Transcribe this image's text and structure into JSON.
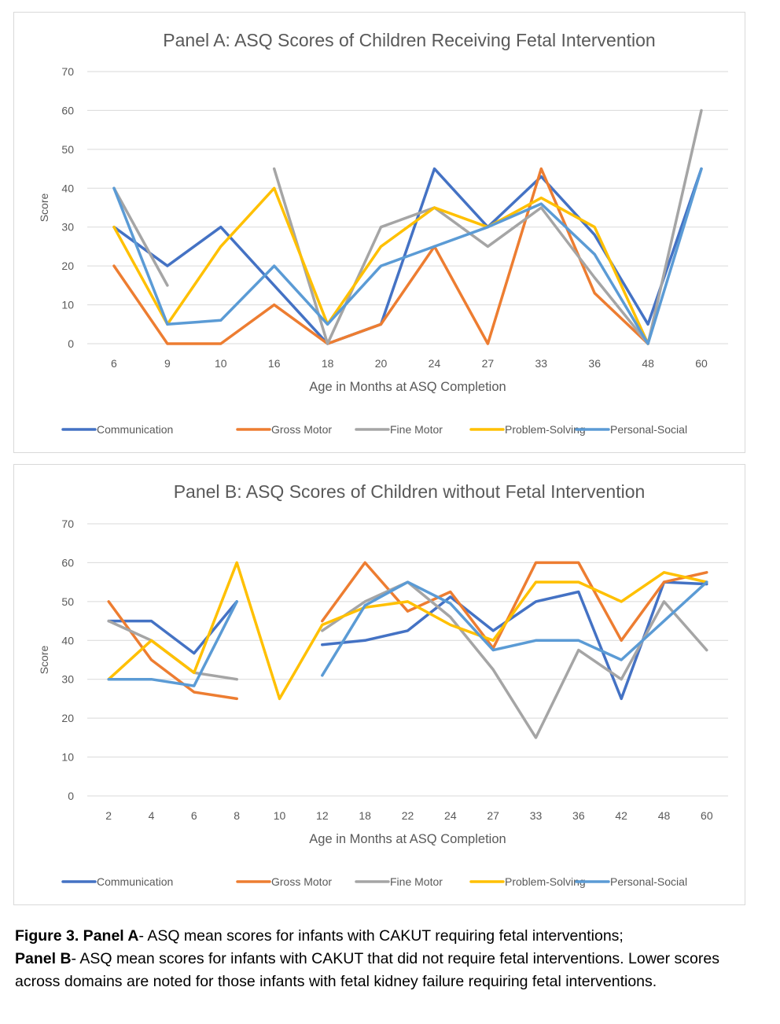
{
  "chart_data": [
    {
      "type": "line",
      "title": "Panel A: ASQ Scores of Children Receiving Fetal Intervention",
      "xlabel": "Age in Months at ASQ Completion",
      "ylabel": "Score",
      "ylim": [
        0,
        70
      ],
      "yticks": [
        0,
        10,
        20,
        30,
        40,
        50,
        60,
        70
      ],
      "grid": true,
      "legend": "bottom",
      "categories": [
        "6",
        "9",
        "10",
        "16",
        "18",
        "20",
        "24",
        "27",
        "33",
        "36",
        "48",
        "60"
      ],
      "series": [
        {
          "name": "Communication",
          "color": "#4472C4",
          "values": [
            30,
            20,
            30,
            15,
            0,
            5,
            45,
            30,
            43,
            28,
            5,
            45
          ]
        },
        {
          "name": "Gross Motor",
          "color": "#ED7D31",
          "values": [
            20,
            0,
            0,
            10,
            0,
            5,
            25,
            0,
            45,
            13,
            0,
            null
          ]
        },
        {
          "name": "Fine Motor",
          "color": "#A5A5A5",
          "values": [
            40,
            15,
            null,
            45,
            0,
            30,
            35,
            25,
            35,
            17,
            0,
            60
          ]
        },
        {
          "name": "Problem-Solving",
          "color": "#FFC000",
          "values": [
            30,
            5,
            25,
            40,
            5,
            25,
            35,
            30,
            37.5,
            30,
            0,
            null
          ]
        },
        {
          "name": "Personal-Social",
          "color": "#5B9BD5",
          "values": [
            40,
            5,
            6,
            20,
            5,
            20,
            25,
            30,
            36,
            23,
            0,
            45
          ]
        }
      ]
    },
    {
      "type": "line",
      "title": "Panel B: ASQ Scores of Children without Fetal Intervention",
      "xlabel": "Age in Months at ASQ Completion",
      "ylabel": "Score",
      "ylim": [
        0,
        70
      ],
      "yticks": [
        0,
        10,
        20,
        30,
        40,
        50,
        60,
        70
      ],
      "grid": true,
      "legend": "bottom",
      "categories": [
        "2",
        "4",
        "6",
        "8",
        "10",
        "12",
        "18",
        "22",
        "24",
        "27",
        "33",
        "36",
        "42",
        "48",
        "60"
      ],
      "series": [
        {
          "name": "Communication",
          "color": "#4472C4",
          "values": [
            45,
            45,
            36.7,
            50,
            null,
            38.9,
            40,
            42.5,
            51.2,
            42.5,
            50,
            52.5,
            25,
            55,
            54.5
          ]
        },
        {
          "name": "Gross Motor",
          "color": "#ED7D31",
          "values": [
            50,
            35,
            26.7,
            25,
            null,
            45,
            60,
            47.5,
            52.5,
            38,
            60,
            60,
            40,
            55,
            57.5
          ]
        },
        {
          "name": "Fine Motor",
          "color": "#A5A5A5",
          "values": [
            45,
            40,
            31.7,
            30,
            null,
            42.5,
            50,
            55,
            46,
            32.5,
            15,
            37.5,
            30,
            50,
            37.5
          ]
        },
        {
          "name": "Problem-Solving",
          "color": "#FFC000",
          "values": [
            30,
            40,
            31.7,
            60,
            25,
            44,
            48.5,
            50,
            44,
            40,
            55,
            55,
            50,
            57.5,
            55
          ]
        },
        {
          "name": "Personal-Social",
          "color": "#5B9BD5",
          "values": [
            30,
            30,
            28.3,
            50,
            null,
            31,
            49,
            55,
            49.5,
            37.5,
            40,
            40,
            35,
            45,
            55
          ]
        }
      ]
    }
  ],
  "caption": {
    "label_a": "Figure 3. Panel A",
    "text_a": "- ASQ mean scores for infants with CAKUT requiring fetal interventions;",
    "label_b": "Panel B",
    "text_b": "- ASQ mean scores for infants with CAKUT that did not require fetal interventions. Lower scores across domains are noted for those infants with fetal kidney failure requiring fetal interventions."
  }
}
